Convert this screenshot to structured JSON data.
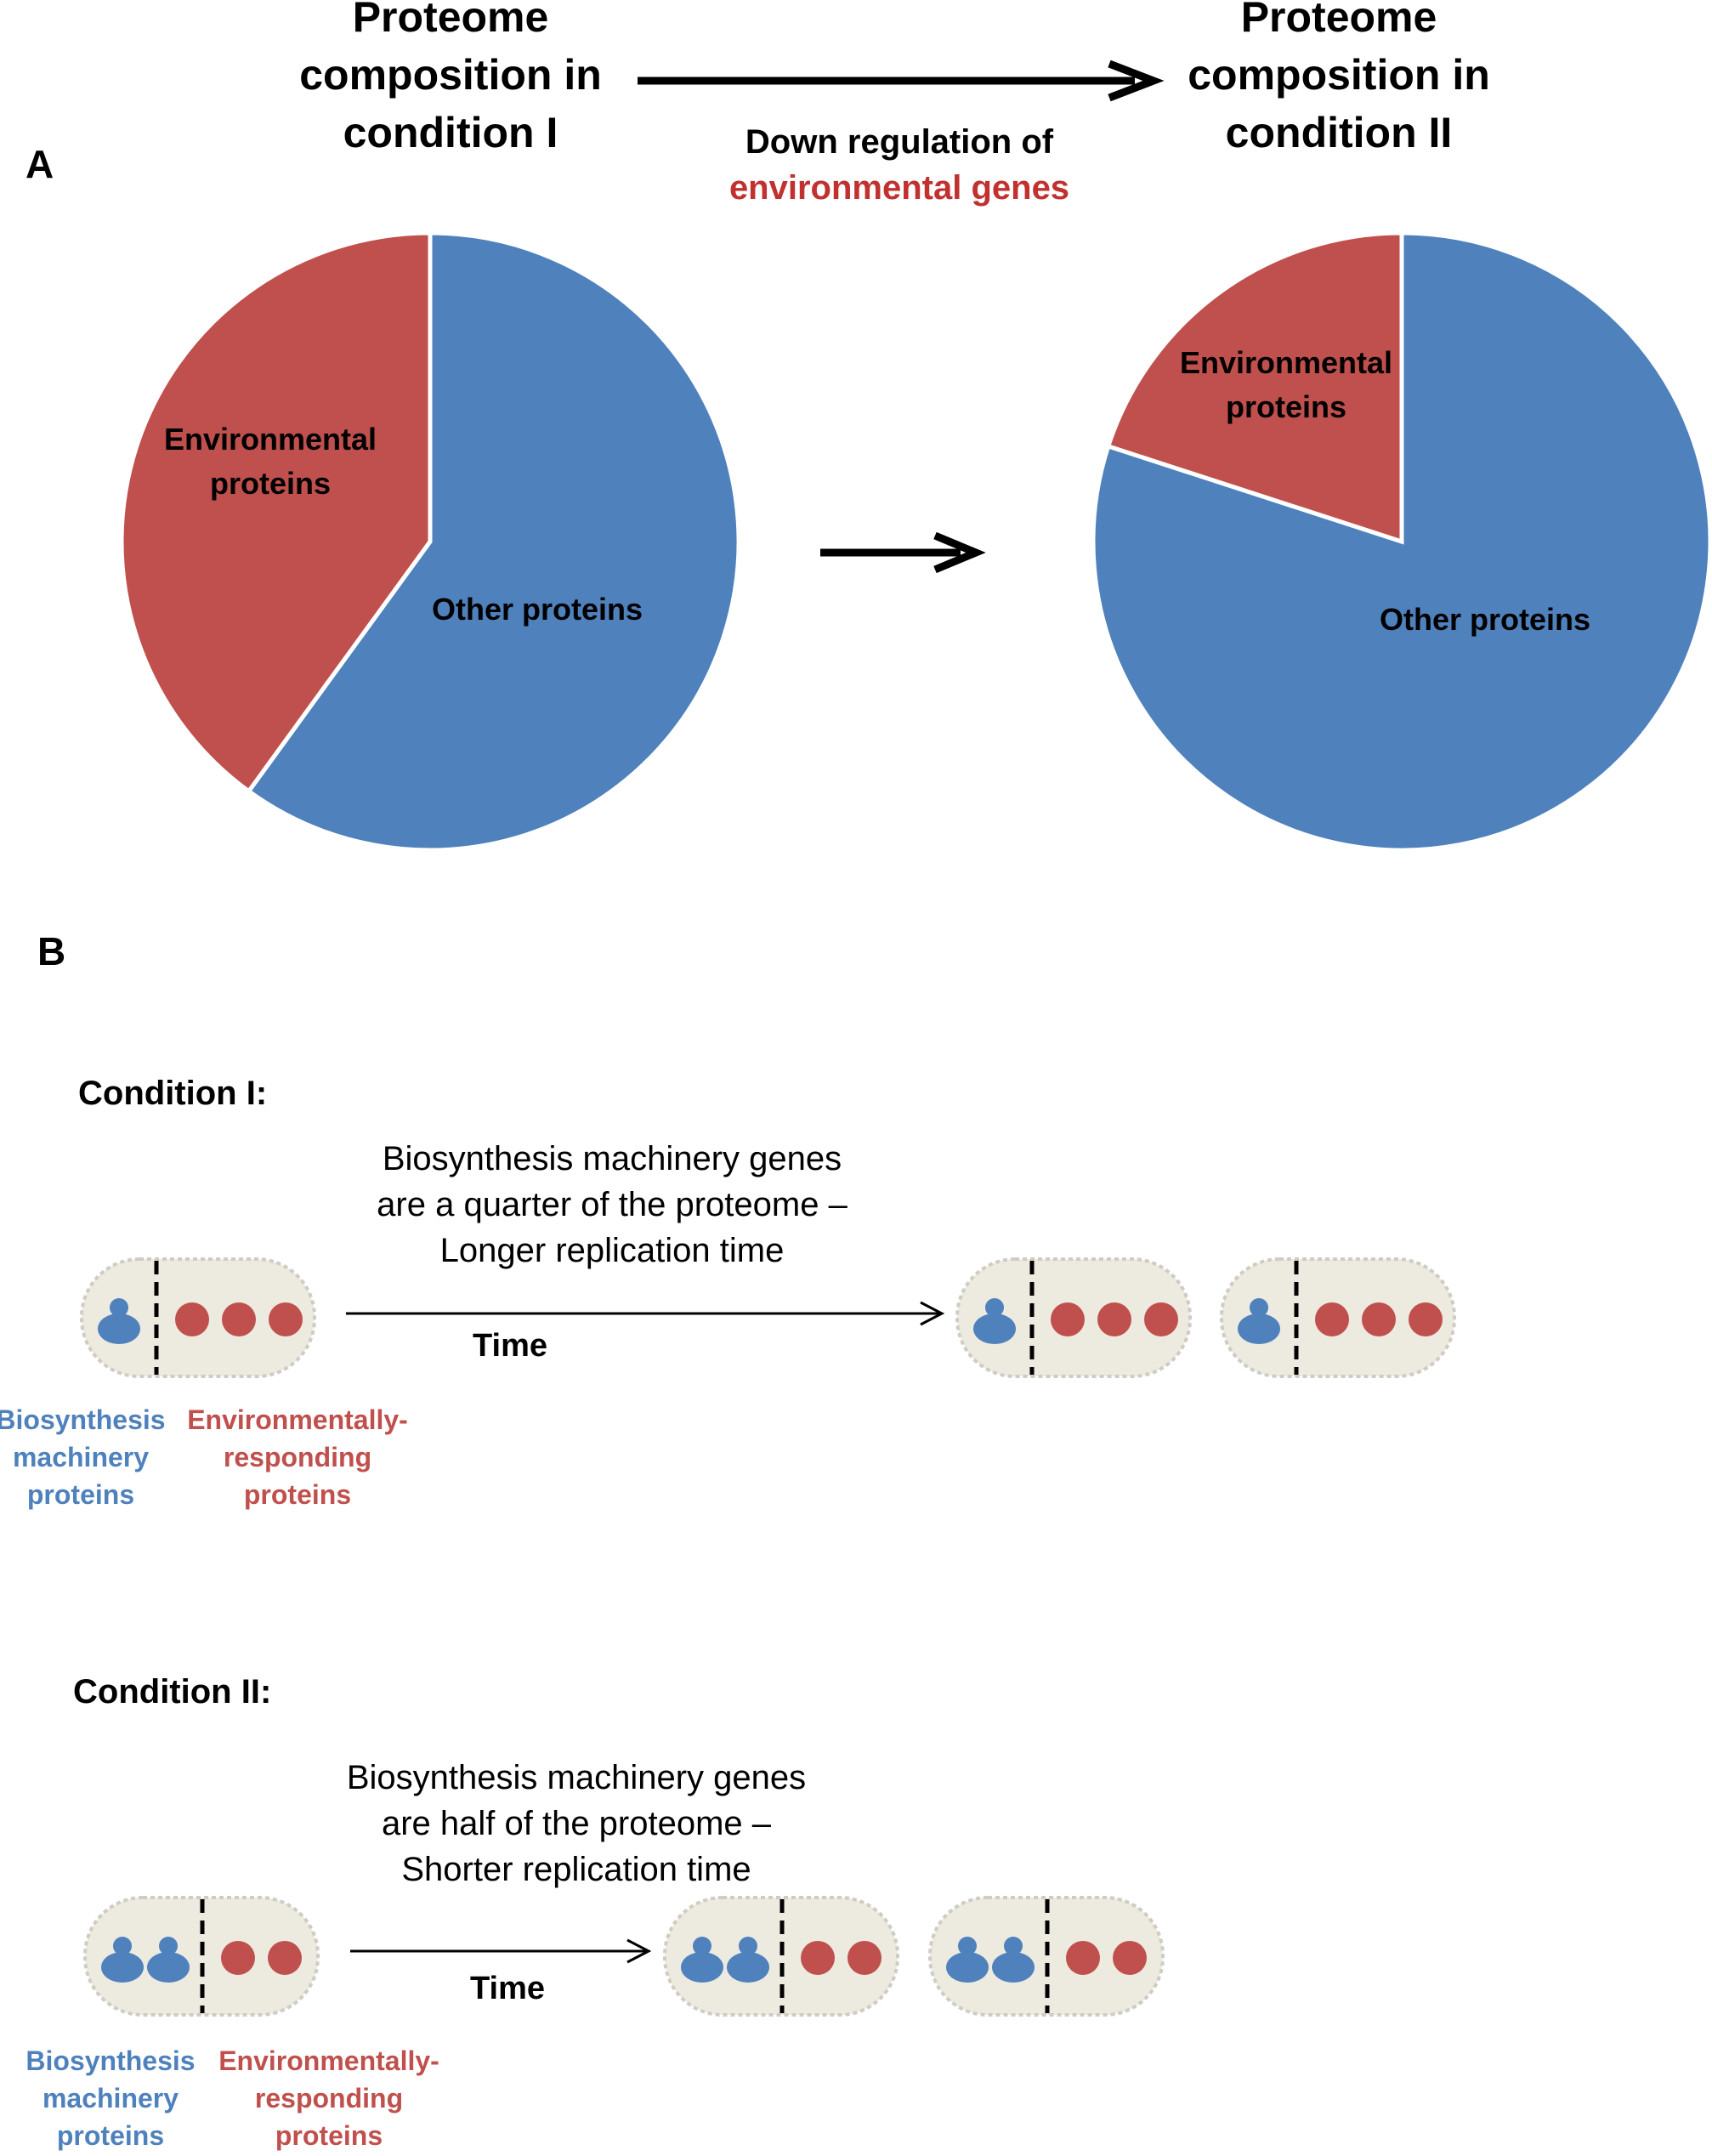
{
  "panel_a": {
    "letter": "A",
    "title_left": [
      "Proteome",
      "composition in",
      "condition I"
    ],
    "title_right": [
      "Proteome",
      "composition in",
      "condition II"
    ],
    "arrow_caption_line1": "Down regulation of",
    "arrow_caption_line2": "environmental genes",
    "colors": {
      "environmental": "#c0504d",
      "other": "#4f81bd",
      "caption_red": "#c0312f"
    }
  },
  "chart_data": [
    {
      "type": "pie",
      "slices": [
        {
          "label": "Other proteins",
          "value": 60
        },
        {
          "label": "Environmental proteins",
          "value": 40
        }
      ],
      "label_lines": {
        "environmental": [
          "Environmental",
          "proteins"
        ],
        "other": [
          "Other proteins"
        ]
      }
    },
    {
      "type": "pie",
      "slices": [
        {
          "label": "Other proteins",
          "value": 80
        },
        {
          "label": "Environmental proteins",
          "value": 20
        }
      ],
      "label_lines": {
        "environmental": [
          "Environmental",
          "proteins"
        ],
        "other": [
          "Other proteins"
        ]
      }
    }
  ],
  "panel_b": {
    "letter": "B",
    "condition1": {
      "title": "Condition I:",
      "note": [
        "Biosynthesis machinery genes",
        "are a quarter of the proteome –",
        "Longer replication time"
      ],
      "time_label": "Time",
      "biosynthesis_count": 1,
      "environmental_count": 3,
      "legend_blue": [
        "Biosynthesis",
        "machinery",
        "proteins"
      ],
      "legend_red": [
        "Environmentally-",
        "responding",
        "proteins"
      ]
    },
    "condition2": {
      "title": "Condition II:",
      "note": [
        "Biosynthesis machinery genes",
        "are half of the proteome –",
        "Shorter replication time"
      ],
      "time_label": "Time",
      "biosynthesis_count": 2,
      "environmental_count": 2,
      "legend_blue": [
        "Biosynthesis",
        "machinery",
        "proteins"
      ],
      "legend_red": [
        "Environmentally-",
        "responding",
        "proteins"
      ]
    }
  }
}
